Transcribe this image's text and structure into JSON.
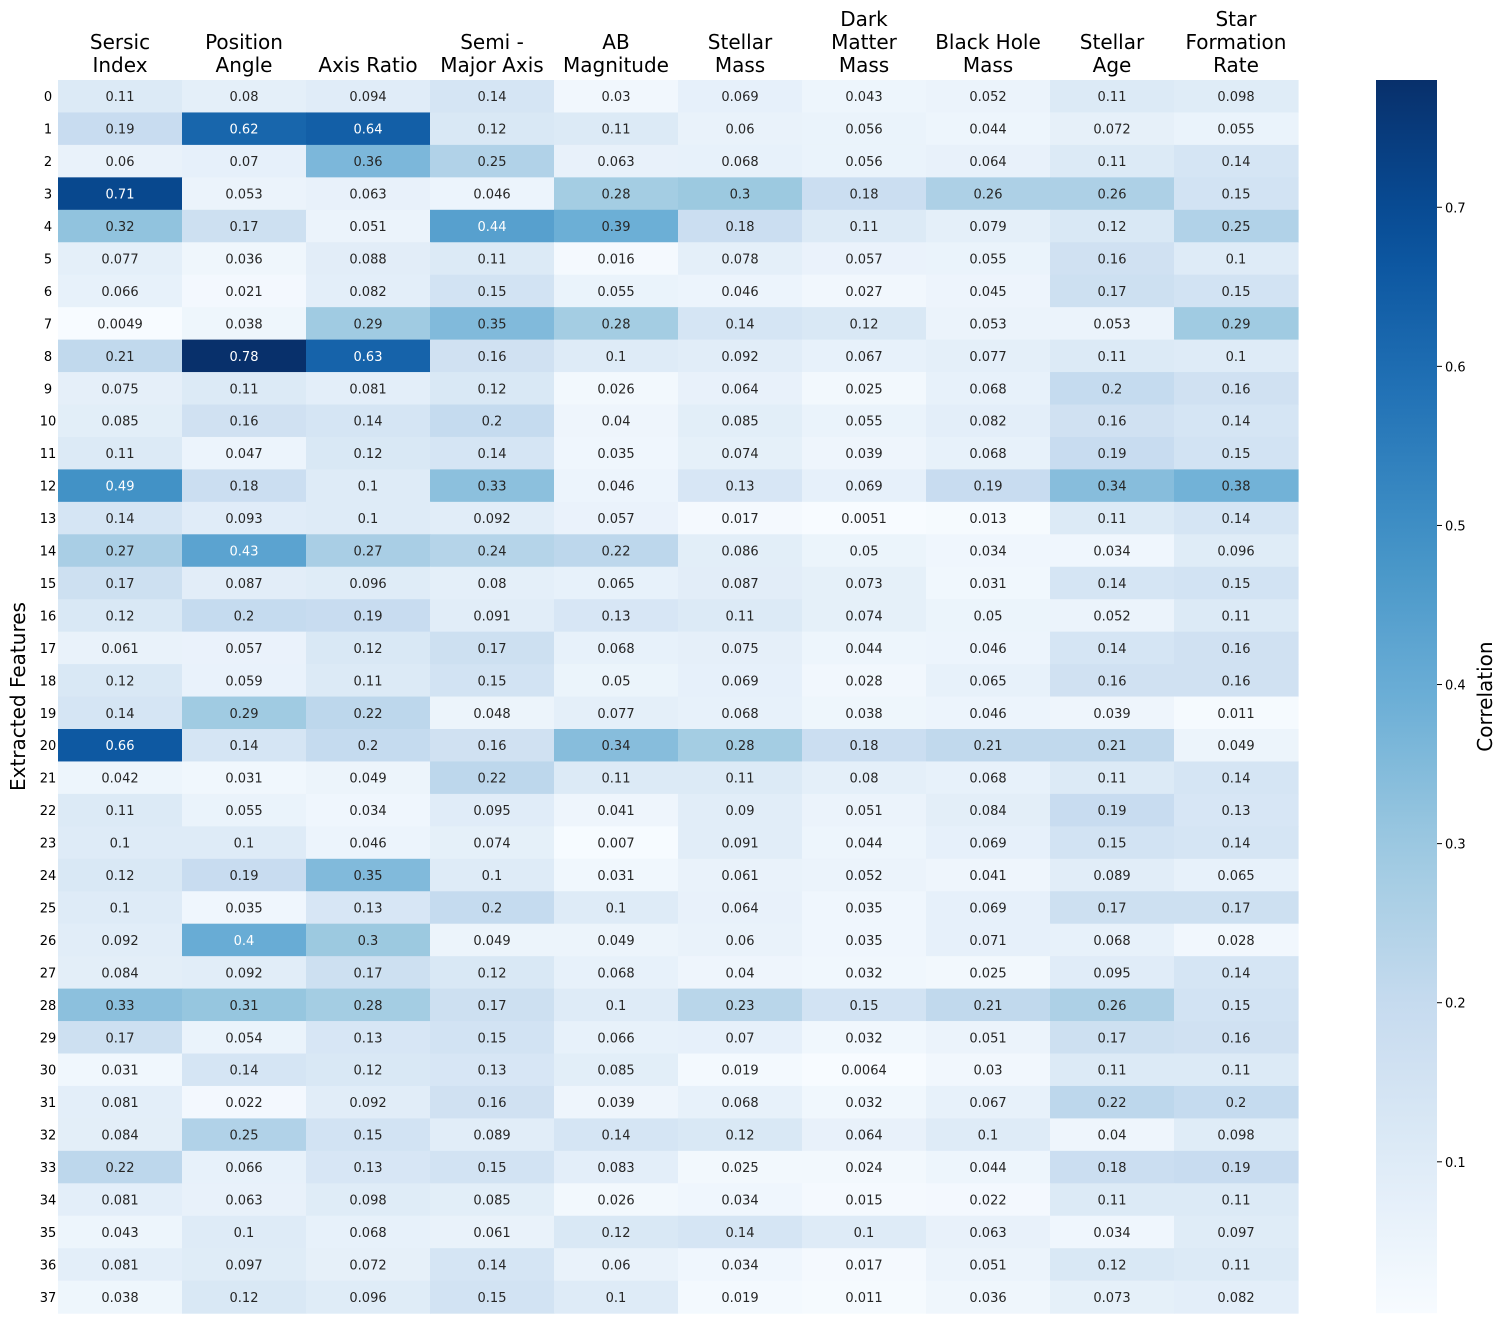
{
  "chart_data": {
    "type": "heatmap",
    "title": "",
    "xlabel": "",
    "ylabel": "Extracted Features",
    "colorbar_label": "Correlation",
    "colormap": "Blues",
    "vmin": 0.0049,
    "vmax": 0.78,
    "colorbar_ticks": [
      "0.1",
      "0.2",
      "0.3",
      "0.4",
      "0.5",
      "0.6",
      "0.7"
    ],
    "columns": [
      [
        "Sersic",
        "Index"
      ],
      [
        "Position",
        "Angle"
      ],
      [
        "Axis Ratio"
      ],
      [
        "Semi -",
        "Major Axis"
      ],
      [
        "AB",
        "Magnitude"
      ],
      [
        "Stellar",
        "Mass"
      ],
      [
        "Dark",
        "Matter",
        "Mass"
      ],
      [
        "Black Hole",
        "Mass"
      ],
      [
        "Stellar",
        "Age"
      ],
      [
        "Star",
        "Formation",
        "Rate"
      ]
    ],
    "rows": [
      "0",
      "1",
      "2",
      "3",
      "4",
      "5",
      "6",
      "7",
      "8",
      "9",
      "10",
      "11",
      "12",
      "13",
      "14",
      "15",
      "16",
      "17",
      "18",
      "19",
      "20",
      "21",
      "22",
      "23",
      "24",
      "25",
      "26",
      "27",
      "28",
      "29",
      "30",
      "31",
      "32",
      "33",
      "34",
      "35",
      "36",
      "37"
    ],
    "values": [
      [
        0.11,
        0.08,
        0.094,
        0.14,
        0.03,
        0.069,
        0.043,
        0.052,
        0.11,
        0.098
      ],
      [
        0.19,
        0.62,
        0.64,
        0.12,
        0.11,
        0.06,
        0.056,
        0.044,
        0.072,
        0.055
      ],
      [
        0.06,
        0.07,
        0.36,
        0.25,
        0.063,
        0.068,
        0.056,
        0.064,
        0.11,
        0.14
      ],
      [
        0.71,
        0.053,
        0.063,
        0.046,
        0.28,
        0.3,
        0.18,
        0.26,
        0.26,
        0.15
      ],
      [
        0.32,
        0.17,
        0.051,
        0.44,
        0.39,
        0.18,
        0.11,
        0.079,
        0.12,
        0.25
      ],
      [
        0.077,
        0.036,
        0.088,
        0.11,
        0.016,
        0.078,
        0.057,
        0.055,
        0.16,
        0.1
      ],
      [
        0.066,
        0.021,
        0.082,
        0.15,
        0.055,
        0.046,
        0.027,
        0.045,
        0.17,
        0.15
      ],
      [
        0.0049,
        0.038,
        0.29,
        0.35,
        0.28,
        0.14,
        0.12,
        0.053,
        0.053,
        0.29
      ],
      [
        0.21,
        0.78,
        0.63,
        0.16,
        0.1,
        0.092,
        0.067,
        0.077,
        0.11,
        0.1
      ],
      [
        0.075,
        0.11,
        0.081,
        0.12,
        0.026,
        0.064,
        0.025,
        0.068,
        0.2,
        0.16
      ],
      [
        0.085,
        0.16,
        0.14,
        0.2,
        0.04,
        0.085,
        0.055,
        0.082,
        0.16,
        0.14
      ],
      [
        0.11,
        0.047,
        0.12,
        0.14,
        0.035,
        0.074,
        0.039,
        0.068,
        0.19,
        0.15
      ],
      [
        0.49,
        0.18,
        0.1,
        0.33,
        0.046,
        0.13,
        0.069,
        0.19,
        0.34,
        0.38
      ],
      [
        0.14,
        0.093,
        0.1,
        0.092,
        0.057,
        0.017,
        0.0051,
        0.013,
        0.11,
        0.14
      ],
      [
        0.27,
        0.43,
        0.27,
        0.24,
        0.22,
        0.086,
        0.05,
        0.034,
        0.034,
        0.096
      ],
      [
        0.17,
        0.087,
        0.096,
        0.08,
        0.065,
        0.087,
        0.073,
        0.031,
        0.14,
        0.15
      ],
      [
        0.12,
        0.2,
        0.19,
        0.091,
        0.13,
        0.11,
        0.074,
        0.05,
        0.052,
        0.11
      ],
      [
        0.061,
        0.057,
        0.12,
        0.17,
        0.068,
        0.075,
        0.044,
        0.046,
        0.14,
        0.16
      ],
      [
        0.12,
        0.059,
        0.11,
        0.15,
        0.05,
        0.069,
        0.028,
        0.065,
        0.16,
        0.16
      ],
      [
        0.14,
        0.29,
        0.22,
        0.048,
        0.077,
        0.068,
        0.038,
        0.046,
        0.039,
        0.011
      ],
      [
        0.66,
        0.14,
        0.2,
        0.16,
        0.34,
        0.28,
        0.18,
        0.21,
        0.21,
        0.049
      ],
      [
        0.042,
        0.031,
        0.049,
        0.22,
        0.11,
        0.11,
        0.08,
        0.068,
        0.11,
        0.14
      ],
      [
        0.11,
        0.055,
        0.034,
        0.095,
        0.041,
        0.09,
        0.051,
        0.084,
        0.19,
        0.13
      ],
      [
        0.1,
        0.1,
        0.046,
        0.074,
        0.007,
        0.091,
        0.044,
        0.069,
        0.15,
        0.14
      ],
      [
        0.12,
        0.19,
        0.35,
        0.1,
        0.031,
        0.061,
        0.052,
        0.041,
        0.089,
        0.065
      ],
      [
        0.1,
        0.035,
        0.13,
        0.2,
        0.1,
        0.064,
        0.035,
        0.069,
        0.17,
        0.17
      ],
      [
        0.092,
        0.4,
        0.3,
        0.049,
        0.049,
        0.06,
        0.035,
        0.071,
        0.068,
        0.028
      ],
      [
        0.084,
        0.092,
        0.17,
        0.12,
        0.068,
        0.04,
        0.032,
        0.025,
        0.095,
        0.14
      ],
      [
        0.33,
        0.31,
        0.28,
        0.17,
        0.1,
        0.23,
        0.15,
        0.21,
        0.26,
        0.15
      ],
      [
        0.17,
        0.054,
        0.13,
        0.15,
        0.066,
        0.07,
        0.032,
        0.051,
        0.17,
        0.16
      ],
      [
        0.031,
        0.14,
        0.12,
        0.13,
        0.085,
        0.019,
        0.0064,
        0.03,
        0.11,
        0.11
      ],
      [
        0.081,
        0.022,
        0.092,
        0.16,
        0.039,
        0.068,
        0.032,
        0.067,
        0.22,
        0.2
      ],
      [
        0.084,
        0.25,
        0.15,
        0.089,
        0.14,
        0.12,
        0.064,
        0.1,
        0.04,
        0.098
      ],
      [
        0.22,
        0.066,
        0.13,
        0.15,
        0.083,
        0.025,
        0.024,
        0.044,
        0.18,
        0.19
      ],
      [
        0.081,
        0.063,
        0.098,
        0.085,
        0.026,
        0.034,
        0.015,
        0.022,
        0.11,
        0.11
      ],
      [
        0.043,
        0.1,
        0.068,
        0.061,
        0.12,
        0.14,
        0.1,
        0.063,
        0.034,
        0.097
      ],
      [
        0.081,
        0.097,
        0.072,
        0.14,
        0.06,
        0.034,
        0.017,
        0.051,
        0.12,
        0.11
      ],
      [
        0.038,
        0.12,
        0.096,
        0.15,
        0.1,
        0.019,
        0.011,
        0.036,
        0.073,
        0.082
      ]
    ]
  }
}
